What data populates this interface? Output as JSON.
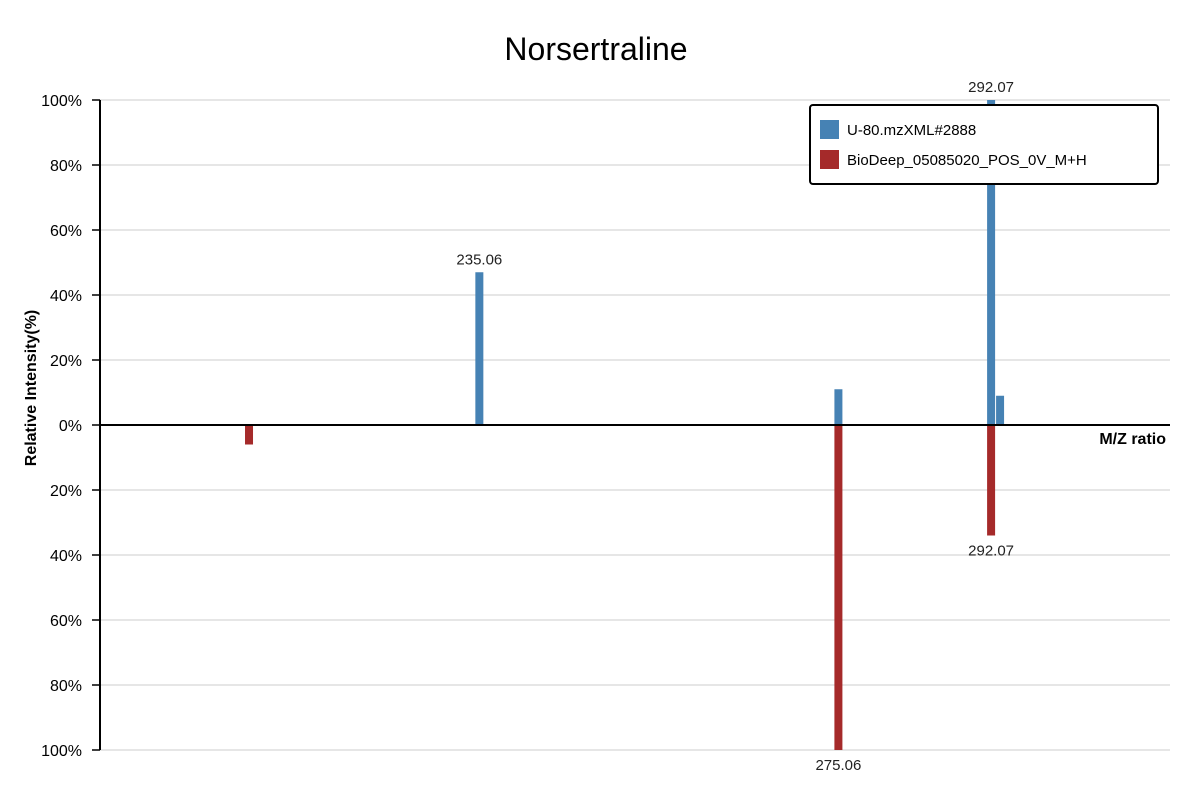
{
  "chart_data": {
    "type": "bar",
    "title": "Norsertraline",
    "xlabel": "M/Z ratio",
    "ylabel": "Relative Intensity(%)",
    "ylim": [
      -100,
      100
    ],
    "y_ticks": [
      {
        "value": 100,
        "label": "100%"
      },
      {
        "value": 80,
        "label": "80%"
      },
      {
        "value": 60,
        "label": "60%"
      },
      {
        "value": 40,
        "label": "40%"
      },
      {
        "value": 20,
        "label": "20%"
      },
      {
        "value": 0,
        "label": "0%"
      },
      {
        "value": -20,
        "label": "20%"
      },
      {
        "value": -40,
        "label": "40%"
      },
      {
        "value": -60,
        "label": "60%"
      },
      {
        "value": -80,
        "label": "80%"
      },
      {
        "value": -100,
        "label": "100%"
      }
    ],
    "xlim": [
      192.8,
      312.0
    ],
    "grid": true,
    "legend_position": "top-right",
    "series": [
      {
        "name": "U-80.mzXML#2888",
        "color": "#4682b4",
        "direction": "up",
        "peaks": [
          {
            "mz": 235.06,
            "intensity": 47,
            "label": "235.06"
          },
          {
            "mz": 275.06,
            "intensity": 11,
            "label": ""
          },
          {
            "mz": 292.07,
            "intensity": 100,
            "label": "292.07"
          },
          {
            "mz": 293.07,
            "intensity": 9,
            "label": ""
          }
        ]
      },
      {
        "name": "BioDeep_05085020_POS_0V_M+H",
        "color": "#a52a2a",
        "direction": "down",
        "peaks": [
          {
            "mz": 209.4,
            "intensity": 6,
            "label": ""
          },
          {
            "mz": 275.06,
            "intensity": 100,
            "label": "275.06"
          },
          {
            "mz": 292.07,
            "intensity": 34,
            "label": "292.07"
          }
        ]
      }
    ]
  }
}
